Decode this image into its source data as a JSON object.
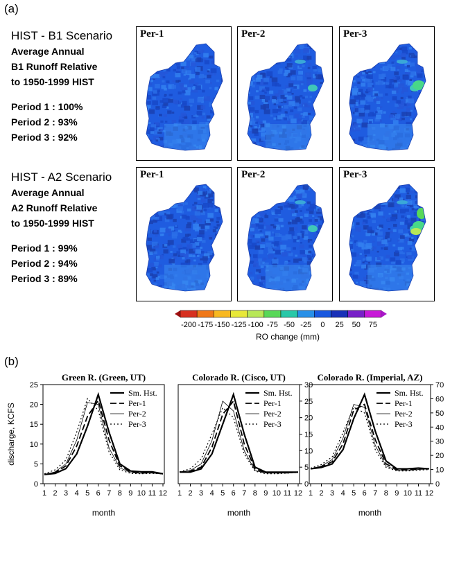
{
  "panel_a_label": "(a)",
  "panel_b_label": "(b)",
  "scenarios": [
    {
      "title": "HIST - B1 Scenario",
      "lines": [
        "Average Annual",
        "B1 Runoff Relative",
        "to 1950-1999 HIST"
      ],
      "periods": [
        "Period 1 : 100%",
        "Period 2 : 93%",
        "Period 3 : 92%"
      ],
      "map_labels": [
        "Per-1",
        "Per-2",
        "Per-3"
      ]
    },
    {
      "title": "HIST - A2 Scenario",
      "lines": [
        "Average Annual",
        "A2 Runoff Relative",
        "to 1950-1999 HIST"
      ],
      "periods": [
        "Period 1 : 99%",
        "Period 2 : 94%",
        "Period 3 : 89%"
      ],
      "map_labels": [
        "Per-1",
        "Per-2",
        "Per-3"
      ]
    }
  ],
  "colorbar": {
    "ticks": [
      "-200",
      "-175",
      "-150",
      "-125",
      "-100",
      "-75",
      "-50",
      "-25",
      "0",
      "25",
      "50",
      "75"
    ],
    "colors": [
      "#d7301f",
      "#f07818",
      "#f8b820",
      "#e8e838",
      "#b8e858",
      "#58d858",
      "#28c8a8",
      "#2890e8",
      "#1858e0",
      "#1830b8",
      "#7820c8",
      "#c818d8"
    ],
    "label": "RO change (mm)"
  },
  "chart_data": [
    {
      "type": "line",
      "title": "Green R. (Green, UT)",
      "ylabel": "discharge, KCFS",
      "xlabel": "month",
      "ylim": [
        0,
        25
      ],
      "yticks": [
        0,
        5,
        10,
        15,
        20,
        25
      ],
      "x": [
        1,
        2,
        3,
        4,
        5,
        6,
        7,
        8,
        9,
        10,
        11,
        12
      ],
      "legend_position": "top-right",
      "series": [
        {
          "name": "Sm. Hst.",
          "values": [
            2.3,
            2.6,
            3.8,
            7.5,
            14.5,
            22.5,
            13.0,
            5.0,
            3.2,
            3.0,
            3.0,
            2.5
          ]
        },
        {
          "name": "Per-1",
          "values": [
            2.3,
            2.8,
            4.5,
            9.5,
            17.0,
            21.0,
            11.0,
            4.5,
            3.0,
            2.8,
            2.8,
            2.5
          ]
        },
        {
          "name": "Per-2",
          "values": [
            2.3,
            3.0,
            5.0,
            11.0,
            20.5,
            20.0,
            9.0,
            4.0,
            2.8,
            2.6,
            2.7,
            2.4
          ]
        },
        {
          "name": "Per-3",
          "values": [
            2.5,
            3.5,
            6.0,
            13.0,
            21.5,
            18.5,
            8.0,
            3.5,
            2.6,
            2.5,
            2.6,
            2.5
          ]
        }
      ]
    },
    {
      "type": "line",
      "title": "Colorado R. (Cisco, UT)",
      "xlabel": "month",
      "ylim": [
        0,
        30
      ],
      "yticks": [
        0,
        5,
        10,
        15,
        20,
        25,
        30
      ],
      "x": [
        1,
        2,
        3,
        4,
        5,
        6,
        7,
        8,
        9,
        10,
        11,
        12
      ],
      "legend_position": "top-right",
      "series": [
        {
          "name": "Sm. Hst.",
          "values": [
            3.5,
            3.5,
            4.5,
            9.0,
            18.0,
            27.0,
            15.0,
            5.0,
            3.5,
            3.5,
            3.5,
            3.5
          ]
        },
        {
          "name": "Per-1",
          "values": [
            3.5,
            3.8,
            5.0,
            11.0,
            21.0,
            25.0,
            12.0,
            4.5,
            3.3,
            3.3,
            3.3,
            3.5
          ]
        },
        {
          "name": "Per-2",
          "values": [
            3.5,
            4.0,
            6.0,
            13.0,
            25.0,
            22.0,
            10.0,
            4.0,
            3.2,
            3.2,
            3.2,
            3.4
          ]
        },
        {
          "name": "Per-3",
          "values": [
            3.6,
            4.5,
            7.5,
            15.0,
            23.0,
            20.0,
            9.0,
            3.8,
            3.0,
            3.0,
            3.2,
            3.4
          ]
        }
      ]
    },
    {
      "type": "line",
      "title": "Colorado R. (Imperial, AZ)",
      "xlabel": "month",
      "ylim": [
        0,
        70
      ],
      "yticks": [
        0,
        10,
        20,
        30,
        40,
        50,
        60,
        70
      ],
      "x": [
        1,
        2,
        3,
        4,
        5,
        6,
        7,
        8,
        9,
        10,
        11,
        12
      ],
      "legend_position": "top-right",
      "series": [
        {
          "name": "Sm. Hst.",
          "values": [
            10.5,
            11.5,
            14.0,
            24.0,
            46.0,
            63.0,
            37.0,
            16.0,
            10.5,
            10.5,
            11.0,
            10.5
          ]
        },
        {
          "name": "Per-1",
          "values": [
            10.5,
            12.0,
            15.5,
            28.0,
            52.0,
            56.0,
            31.0,
            14.0,
            10.0,
            10.0,
            10.5,
            10.5
          ]
        },
        {
          "name": "Per-2",
          "values": [
            10.5,
            12.5,
            17.0,
            32.0,
            56.0,
            54.0,
            27.0,
            12.5,
            9.5,
            9.5,
            10.0,
            10.5
          ]
        },
        {
          "name": "Per-3",
          "values": [
            11.0,
            13.5,
            19.0,
            36.0,
            54.0,
            50.0,
            24.0,
            11.5,
            9.0,
            9.0,
            9.5,
            10.0
          ]
        }
      ]
    }
  ]
}
